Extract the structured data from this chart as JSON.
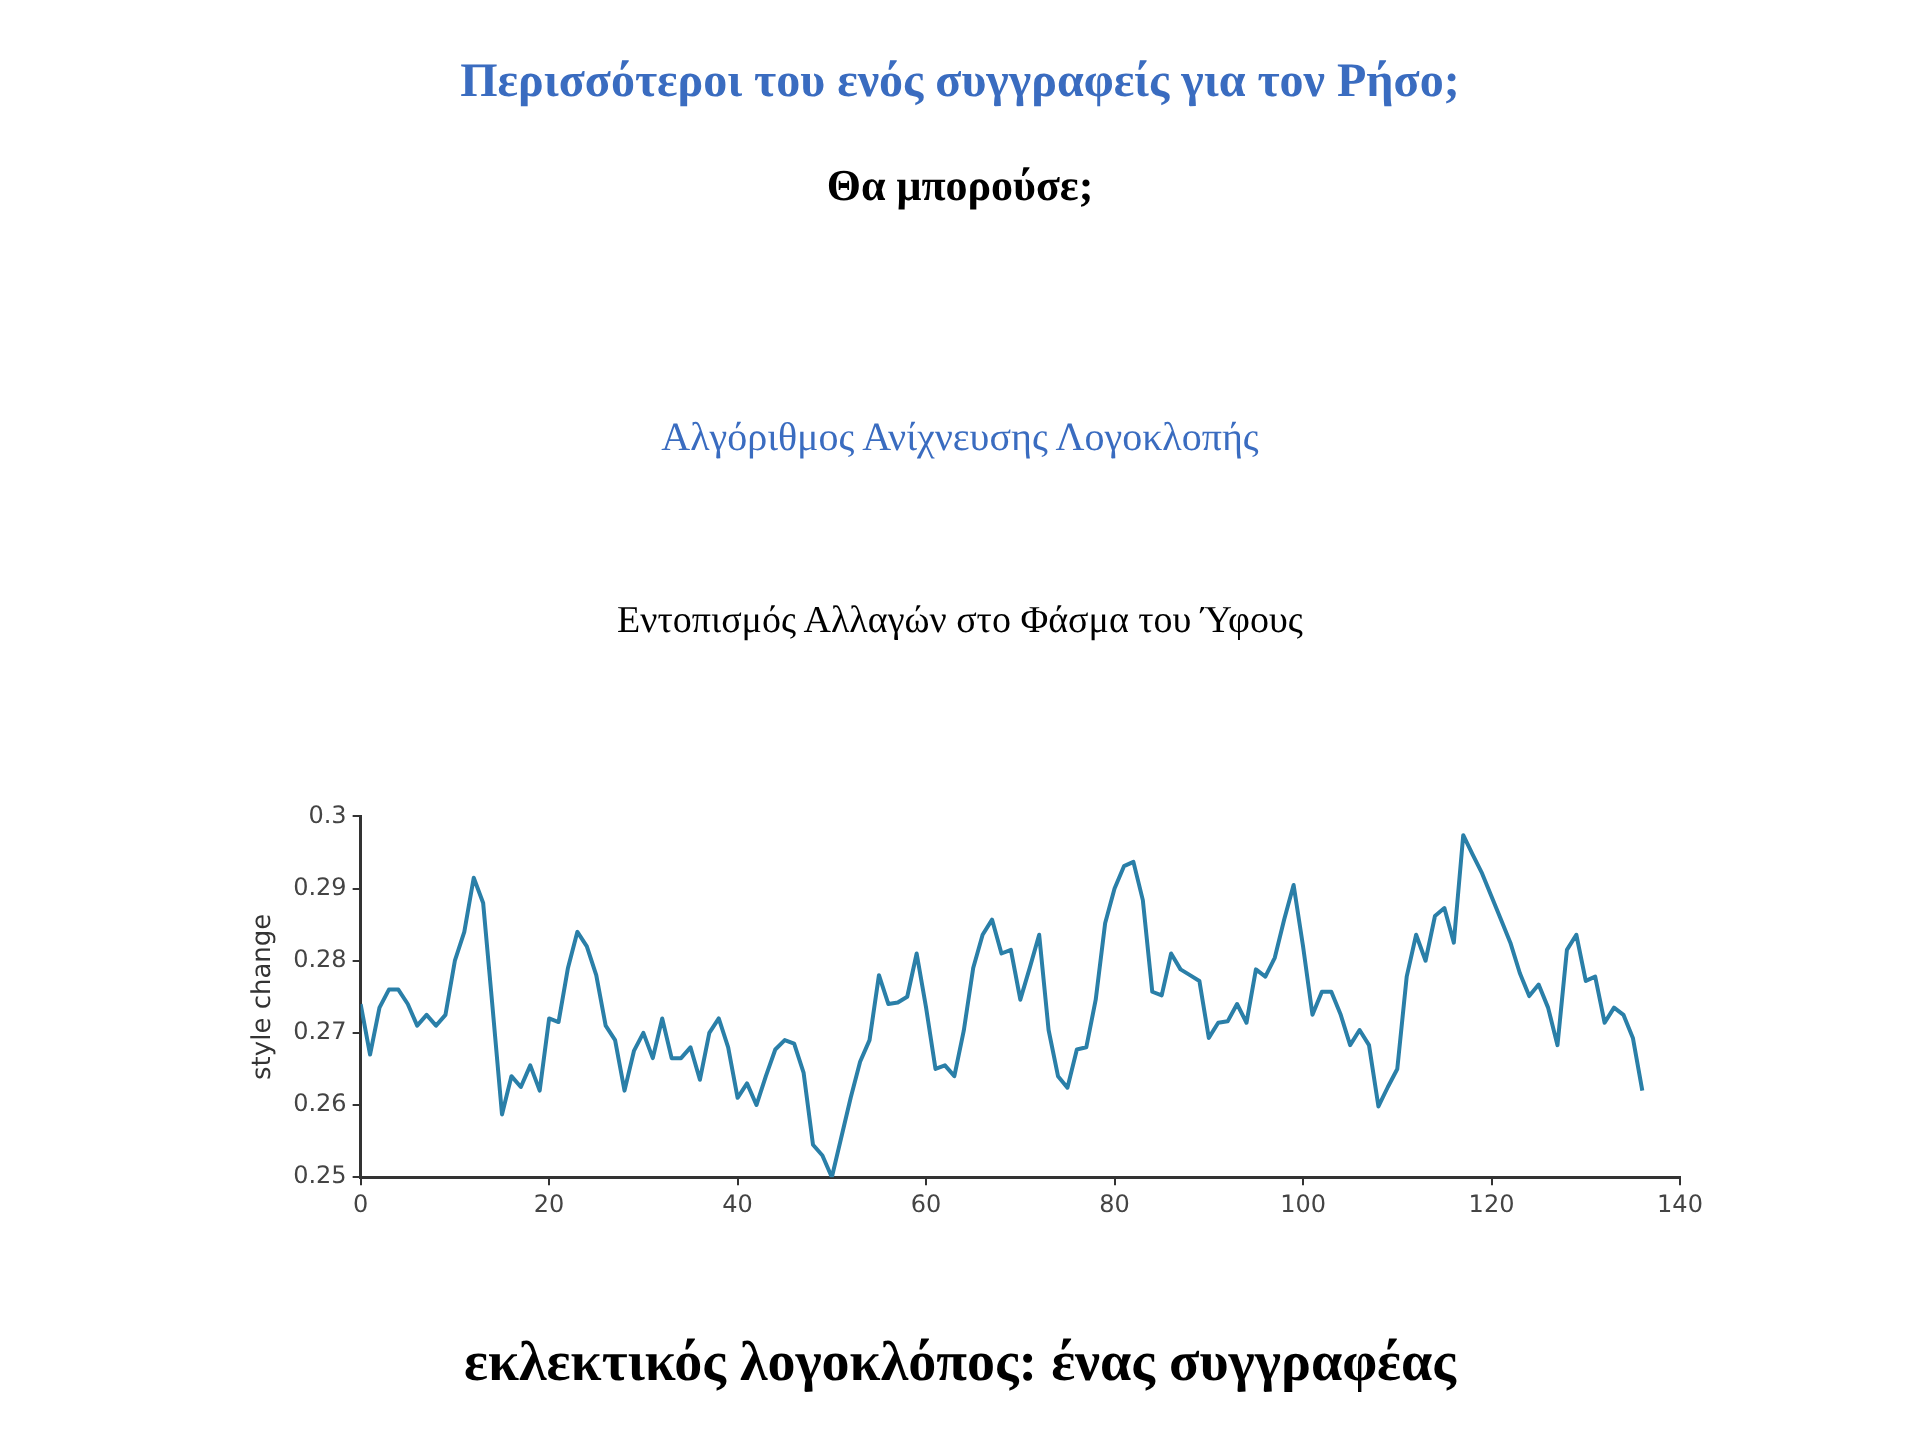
{
  "chart_data": {
    "type": "line",
    "title": "Περισσότεροι του ενός συγγραφείς για τον Ρήσο;",
    "subtitle": "Θα μπορούσε;",
    "annotations": [
      "Αλγόριθμος Ανίχνευσης Λογοκλοπής",
      "Εντοπισμός Αλλαγών στο Φάσμα του Ύφους",
      "εκλεκτικός λογοκλόπος: ένας συγγραφέας"
    ],
    "ylabel": "style change",
    "x": [
      0,
      1,
      2,
      3,
      4,
      5,
      6,
      7,
      8,
      9,
      10,
      11,
      12,
      13,
      14,
      15,
      16,
      17,
      18,
      19,
      20,
      21,
      22,
      23,
      24,
      25,
      26,
      27,
      28,
      29,
      30,
      31,
      32,
      33,
      34,
      35,
      36,
      37,
      38,
      39,
      40,
      41,
      42,
      43,
      44,
      45,
      46,
      47,
      48,
      49,
      50,
      51,
      52,
      53,
      54,
      55,
      56,
      57,
      58,
      59,
      60,
      61,
      62,
      63,
      64,
      65,
      66,
      67,
      68,
      69,
      70,
      71,
      72,
      73,
      74,
      75,
      76,
      77,
      78,
      79,
      80,
      81,
      82,
      83,
      84,
      85,
      86,
      87,
      88,
      89,
      90,
      91,
      92,
      93,
      94,
      95,
      96,
      97,
      98,
      99,
      100,
      101,
      102,
      103,
      104,
      105,
      106,
      107,
      108,
      109,
      110,
      111,
      112,
      113,
      114,
      115,
      116,
      117,
      118,
      119,
      120,
      121,
      122,
      123,
      124,
      125,
      126,
      127,
      128,
      129,
      130,
      131,
      132,
      133,
      134,
      135,
      136
    ],
    "series": [
      {
        "color": "#2a7fa8",
        "values": [
          0.274,
          0.267,
          0.2735,
          0.276,
          0.276,
          0.274,
          0.271,
          0.2725,
          0.271,
          0.2725,
          0.28,
          0.284,
          0.2915,
          0.288,
          0.2735,
          0.2587,
          0.264,
          0.2625,
          0.2655,
          0.262,
          0.272,
          0.2715,
          0.279,
          0.284,
          0.282,
          0.278,
          0.271,
          0.269,
          0.262,
          0.2675,
          0.27,
          0.2665,
          0.272,
          0.2665,
          0.2665,
          0.268,
          0.2635,
          0.27,
          0.272,
          0.268,
          0.261,
          0.263,
          0.26,
          0.264,
          0.2677,
          0.269,
          0.2685,
          0.2645,
          0.2545,
          0.253,
          0.25,
          0.2555,
          0.261,
          0.266,
          0.269,
          0.278,
          0.274,
          0.2742,
          0.275,
          0.281,
          0.2735,
          0.265,
          0.2655,
          0.264,
          0.2703,
          0.279,
          0.2836,
          0.2857,
          0.281,
          0.2815,
          0.2746,
          0.279,
          0.2836,
          0.2704,
          0.264,
          0.2624,
          0.2677,
          0.268,
          0.2746,
          0.2852,
          0.29,
          0.2931,
          0.2937,
          0.2884,
          0.2757,
          0.2752,
          0.281,
          0.2788,
          0.278,
          0.2772,
          0.2693,
          0.2714,
          0.2716,
          0.274,
          0.2714,
          0.2788,
          0.2778,
          0.2804,
          0.2857,
          0.2905,
          0.282,
          0.2725,
          0.2757,
          0.2757,
          0.2725,
          0.2683,
          0.2704,
          0.2683,
          0.2598,
          0.2625,
          0.265,
          0.2778,
          0.2836,
          0.28,
          0.2862,
          0.2873,
          0.2825,
          0.2974,
          0.2947,
          0.2921,
          0.2889,
          0.2857,
          0.2825,
          0.2783,
          0.2751,
          0.2767,
          0.2735,
          0.2683,
          0.2815,
          0.2836,
          0.2772,
          0.2778,
          0.2714,
          0.2735,
          0.2725,
          0.2693,
          0.262
        ]
      }
    ],
    "xlim": [
      0,
      140
    ],
    "xticks": [
      0,
      20,
      40,
      60,
      80,
      100,
      120,
      140
    ],
    "ylim": [
      0.25,
      0.3
    ],
    "yticks": [
      0.25,
      0.26,
      0.27,
      0.28,
      0.29,
      0.3
    ],
    "grid": false,
    "legend": false,
    "marker": "none",
    "line_style": "solid"
  }
}
